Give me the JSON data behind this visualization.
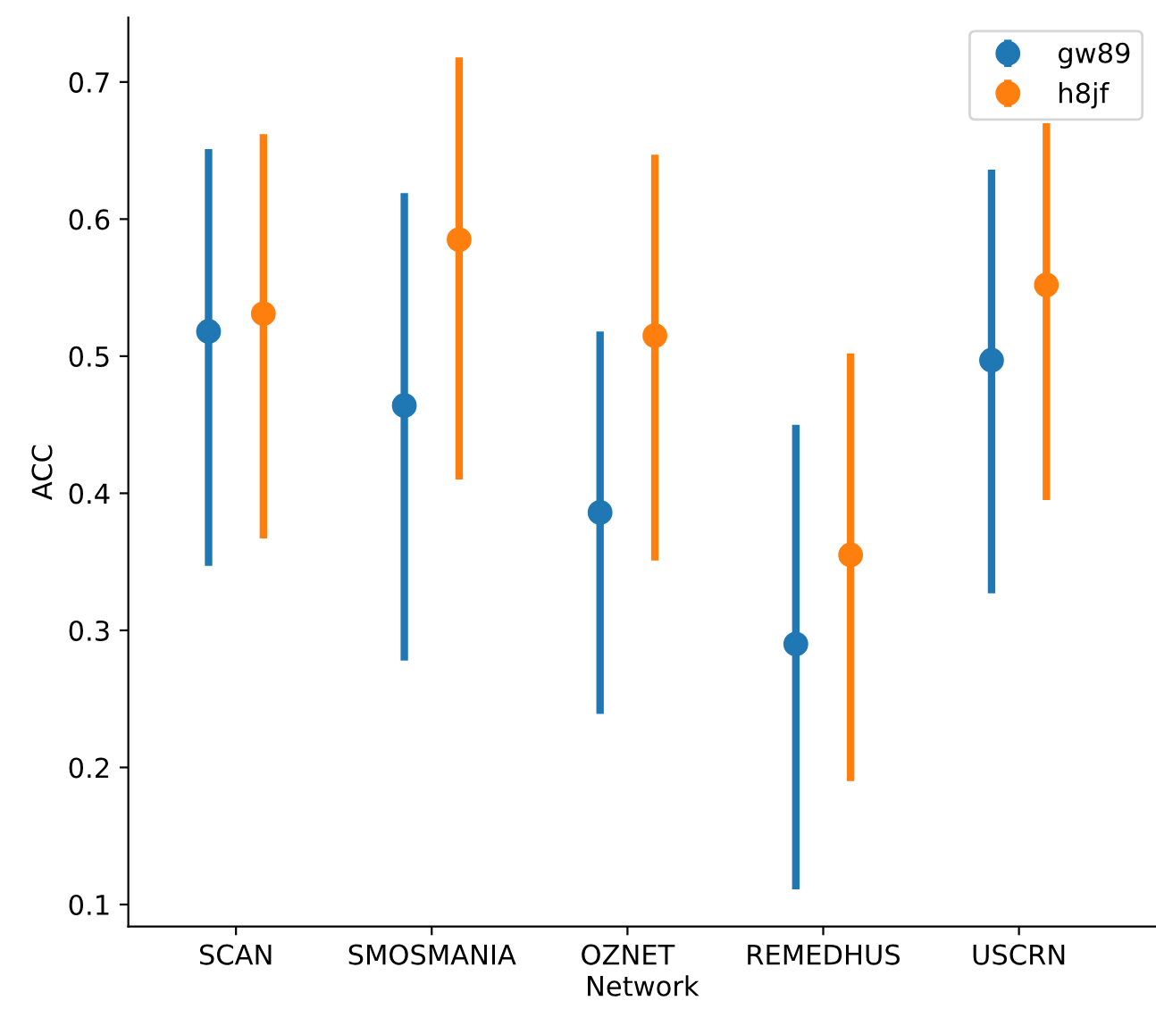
{
  "chart_data": {
    "type": "scatter",
    "xlabel": "Network",
    "ylabel": "ACC",
    "categories": [
      "SCAN",
      "SMOSMANIA",
      "OZNET",
      "REMEDHUS",
      "USCRN"
    ],
    "series": [
      {
        "name": "gw89",
        "color": "#1f77b4",
        "values": [
          0.518,
          0.464,
          0.386,
          0.29,
          0.497
        ],
        "errors": [
          [
            0.347,
            0.651
          ],
          [
            0.278,
            0.619
          ],
          [
            0.239,
            0.518
          ],
          [
            0.111,
            0.45
          ],
          [
            0.327,
            0.636
          ]
        ]
      },
      {
        "name": "h8jf",
        "color": "#ff7f0e",
        "values": [
          0.531,
          0.585,
          0.515,
          0.355,
          0.552
        ],
        "errors": [
          [
            0.367,
            0.662
          ],
          [
            0.41,
            0.718
          ],
          [
            0.351,
            0.647
          ],
          [
            0.19,
            0.502
          ],
          [
            0.395,
            0.67
          ]
        ]
      }
    ],
    "ylim": [
      0.084,
      0.747
    ],
    "yticks": [
      0.1,
      0.2,
      0.3,
      0.4,
      0.5,
      0.6,
      0.7
    ],
    "marker": "circle",
    "grid": false,
    "legend": "top right"
  }
}
